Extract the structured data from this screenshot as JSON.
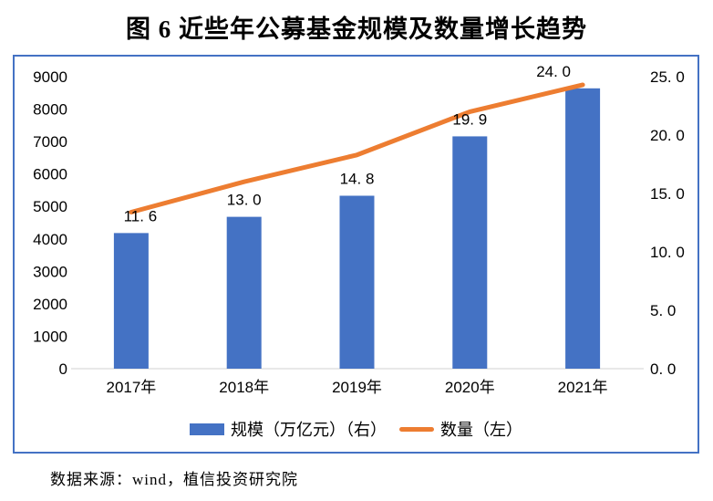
{
  "title": "图 6 近些年公募基金规模及数量增长趋势",
  "footer": {
    "source_label": "数据来源：wind，植信投资研究院"
  },
  "colors": {
    "bar": "#4472C4",
    "line": "#ED7D31",
    "frame_border": "#4472C4",
    "axis_line": "#D9D9D9",
    "text": "#000000"
  },
  "chart_data": {
    "type": "bar",
    "subtype": "bar-line-combo",
    "title": "图 6 近些年公募基金规模及数量增长趋势",
    "categories": [
      "2017年",
      "2018年",
      "2019年",
      "2020年",
      "2021年"
    ],
    "series": [
      {
        "name": "规模（万亿元）（右）",
        "type": "bar",
        "axis": "left",
        "color": "#4472C4",
        "values": [
          4180,
          4680,
          5330,
          7160,
          8640
        ]
      },
      {
        "name": "数量（左）",
        "type": "line",
        "axis": "right",
        "color": "#ED7D31",
        "values": [
          11.6,
          13.0,
          14.8,
          19.9,
          24.0
        ],
        "data_labels": [
          "11. 6",
          "13. 0",
          "14. 8",
          "19. 9",
          "24. 0"
        ],
        "drawn_path_right_axis": [
          13.4,
          16.0,
          18.3,
          22.0,
          24.3
        ],
        "note": "in the source image the orange line is drawn slightly above the bar tops; data labels show the series values"
      }
    ],
    "left_axis": {
      "min": 0,
      "max": 9000,
      "tick_step": 1000,
      "ticks": [
        "9000",
        "8000",
        "7000",
        "6000",
        "5000",
        "4000",
        "3000",
        "2000",
        "1000",
        "0"
      ]
    },
    "right_axis": {
      "min": 0,
      "max": 25,
      "tick_step": 5,
      "ticks": [
        "25. 0",
        "20. 0",
        "15. 0",
        "10. 0",
        "5. 0",
        "0. 0"
      ]
    },
    "grid": false,
    "legend_position": "bottom"
  }
}
